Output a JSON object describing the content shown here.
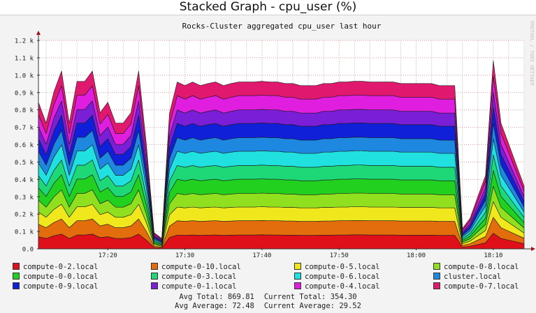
{
  "page": {
    "title": "Stacked Graph - cpu_user (%)"
  },
  "watermark": "RRDTOOL / TOBI OETIKER",
  "chart_data": {
    "type": "area",
    "title": "Rocks-Cluster aggregated cpu_user last hour",
    "xlabel": "",
    "ylabel": "",
    "ylim": [
      0,
      1200
    ],
    "yticks": [
      0,
      100,
      200,
      300,
      400,
      500,
      600,
      700,
      800,
      900,
      1000,
      1100,
      1200
    ],
    "ytick_labels": [
      "0.0",
      "0.1 k",
      "0.2 k",
      "0.3 k",
      "0.4 k",
      "0.5 k",
      "0.6 k",
      "0.7 k",
      "0.8 k",
      "0.9 k",
      "1.0 k",
      "1.1 k",
      "1.2 k"
    ],
    "xlim": [
      "17:11",
      "18:14"
    ],
    "xticks": [
      "17:20",
      "17:30",
      "17:40",
      "17:50",
      "18:00",
      "18:10"
    ],
    "grid": true,
    "legend_position": "bottom",
    "stacked": true,
    "x": [
      "17:11",
      "17:12",
      "17:13",
      "17:14",
      "17:15",
      "17:16",
      "17:17",
      "17:18",
      "17:19",
      "17:20",
      "17:21",
      "17:22",
      "17:23",
      "17:24",
      "17:25",
      "17:26",
      "17:27",
      "17:28",
      "17:29",
      "17:30",
      "17:31",
      "17:32",
      "17:33",
      "17:34",
      "17:35",
      "17:36",
      "17:37",
      "17:38",
      "17:39",
      "17:40",
      "17:41",
      "17:42",
      "17:43",
      "17:44",
      "17:45",
      "17:46",
      "17:47",
      "17:48",
      "17:49",
      "17:50",
      "17:51",
      "17:52",
      "17:53",
      "17:54",
      "17:55",
      "17:56",
      "17:57",
      "17:58",
      "17:59",
      "18:00",
      "18:01",
      "18:02",
      "18:03",
      "18:04",
      "18:05",
      "18:06",
      "18:07",
      "18:08",
      "18:09",
      "18:10",
      "18:11",
      "18:12",
      "18:13",
      "18:14"
    ],
    "series": [
      {
        "name": "compute-0-2.local",
        "color": "#e0101a",
        "values": [
          70,
          60,
          75,
          85,
          60,
          80,
          80,
          85,
          65,
          70,
          60,
          60,
          65,
          85,
          50,
          8,
          5,
          65,
          80,
          78,
          80,
          78,
          79,
          80,
          78,
          79,
          80,
          80,
          80,
          81,
          80,
          80,
          79,
          79,
          78,
          78,
          78,
          79,
          79,
          80,
          80,
          81,
          81,
          80,
          80,
          80,
          80,
          79,
          79,
          79,
          79,
          79,
          78,
          78,
          78,
          10,
          15,
          25,
          35,
          90,
          60,
          50,
          40,
          30
        ]
      },
      {
        "name": "compute-0-10.local",
        "color": "#e36c0c",
        "values": [
          72,
          62,
          77,
          87,
          62,
          82,
          82,
          87,
          67,
          72,
          62,
          62,
          67,
          87,
          52,
          8,
          5,
          66,
          82,
          80,
          82,
          80,
          81,
          82,
          80,
          81,
          82,
          82,
          82,
          82,
          82,
          82,
          81,
          81,
          80,
          80,
          80,
          81,
          81,
          82,
          82,
          82,
          82,
          82,
          82,
          82,
          82,
          81,
          81,
          81,
          81,
          81,
          80,
          80,
          80,
          10,
          15,
          26,
          36,
          92,
          62,
          52,
          41,
          31
        ]
      },
      {
        "name": "compute-0-5.local",
        "color": "#f0e81c",
        "values": [
          70,
          60,
          75,
          85,
          60,
          80,
          80,
          85,
          65,
          70,
          60,
          60,
          65,
          85,
          50,
          8,
          5,
          65,
          79,
          78,
          79,
          78,
          79,
          79,
          78,
          79,
          79,
          79,
          79,
          80,
          79,
          79,
          79,
          79,
          78,
          78,
          78,
          79,
          79,
          79,
          79,
          80,
          80,
          79,
          79,
          79,
          79,
          79,
          79,
          79,
          79,
          79,
          78,
          78,
          78,
          10,
          15,
          25,
          35,
          90,
          60,
          50,
          40,
          30
        ]
      },
      {
        "name": "compute-0-8.local",
        "color": "#90e020",
        "values": [
          68,
          58,
          73,
          83,
          58,
          78,
          78,
          83,
          63,
          68,
          58,
          58,
          63,
          83,
          48,
          7,
          5,
          63,
          78,
          76,
          78,
          76,
          77,
          78,
          76,
          77,
          78,
          78,
          78,
          78,
          78,
          78,
          77,
          77,
          76,
          76,
          76,
          77,
          77,
          78,
          78,
          78,
          78,
          78,
          78,
          78,
          78,
          77,
          77,
          77,
          77,
          77,
          76,
          76,
          76,
          9,
          14,
          24,
          34,
          88,
          58,
          48,
          39,
          29
        ]
      },
      {
        "name": "compute-0-0.local",
        "color": "#22d020",
        "values": [
          72,
          62,
          77,
          87,
          62,
          82,
          82,
          87,
          67,
          72,
          62,
          62,
          67,
          87,
          52,
          8,
          5,
          66,
          82,
          80,
          82,
          80,
          81,
          82,
          80,
          81,
          82,
          82,
          82,
          82,
          82,
          82,
          81,
          81,
          80,
          80,
          80,
          81,
          81,
          82,
          82,
          82,
          82,
          82,
          82,
          82,
          82,
          81,
          81,
          81,
          81,
          81,
          80,
          80,
          80,
          10,
          15,
          26,
          36,
          92,
          62,
          52,
          41,
          31
        ]
      },
      {
        "name": "compute-0-3.local",
        "color": "#1ed878",
        "values": [
          70,
          60,
          75,
          85,
          60,
          80,
          80,
          85,
          65,
          70,
          60,
          60,
          65,
          85,
          50,
          8,
          5,
          65,
          79,
          78,
          79,
          78,
          79,
          79,
          78,
          79,
          79,
          79,
          79,
          80,
          79,
          79,
          79,
          79,
          78,
          78,
          78,
          79,
          79,
          79,
          79,
          80,
          80,
          79,
          79,
          79,
          79,
          79,
          79,
          79,
          79,
          79,
          78,
          78,
          78,
          10,
          15,
          25,
          35,
          90,
          60,
          50,
          40,
          30
        ]
      },
      {
        "name": "compute-0-6.local",
        "color": "#20e0e0",
        "values": [
          72,
          62,
          77,
          87,
          62,
          82,
          82,
          87,
          67,
          72,
          62,
          62,
          67,
          87,
          52,
          8,
          5,
          66,
          82,
          80,
          82,
          80,
          81,
          82,
          80,
          81,
          82,
          82,
          82,
          82,
          82,
          82,
          81,
          81,
          80,
          80,
          80,
          81,
          81,
          82,
          82,
          82,
          82,
          82,
          82,
          82,
          82,
          81,
          81,
          81,
          81,
          81,
          80,
          80,
          80,
          10,
          15,
          26,
          36,
          92,
          62,
          52,
          41,
          31
        ]
      },
      {
        "name": "cluster.local",
        "color": "#1e88e0",
        "values": [
          68,
          58,
          73,
          83,
          58,
          78,
          78,
          83,
          63,
          68,
          58,
          58,
          63,
          83,
          48,
          7,
          5,
          63,
          78,
          76,
          78,
          76,
          77,
          78,
          76,
          77,
          78,
          78,
          78,
          78,
          78,
          78,
          77,
          77,
          76,
          76,
          76,
          77,
          77,
          78,
          78,
          78,
          78,
          78,
          78,
          78,
          78,
          77,
          77,
          77,
          77,
          77,
          76,
          76,
          76,
          9,
          14,
          24,
          34,
          88,
          58,
          48,
          39,
          29
        ]
      },
      {
        "name": "compute-0-9.local",
        "color": "#1020d8",
        "values": [
          72,
          62,
          77,
          87,
          62,
          82,
          82,
          87,
          67,
          72,
          62,
          62,
          67,
          87,
          52,
          8,
          5,
          66,
          82,
          80,
          82,
          80,
          81,
          82,
          80,
          81,
          82,
          82,
          82,
          82,
          82,
          82,
          81,
          81,
          80,
          80,
          80,
          81,
          81,
          82,
          82,
          82,
          82,
          82,
          82,
          82,
          82,
          81,
          81,
          81,
          81,
          81,
          80,
          80,
          80,
          10,
          15,
          26,
          36,
          92,
          62,
          52,
          41,
          31
        ]
      },
      {
        "name": "compute-0-1.local",
        "color": "#7a1ed8",
        "values": [
          68,
          58,
          73,
          83,
          58,
          78,
          78,
          83,
          63,
          68,
          58,
          58,
          63,
          83,
          48,
          7,
          5,
          63,
          78,
          76,
          78,
          76,
          77,
          78,
          76,
          77,
          78,
          78,
          78,
          78,
          78,
          78,
          77,
          77,
          76,
          76,
          76,
          77,
          77,
          78,
          78,
          78,
          78,
          78,
          78,
          78,
          78,
          77,
          77,
          77,
          77,
          77,
          76,
          76,
          76,
          9,
          14,
          24,
          34,
          88,
          58,
          48,
          39,
          29
        ]
      },
      {
        "name": "compute-0-4.local",
        "color": "#e01ee0",
        "values": [
          72,
          62,
          77,
          87,
          62,
          82,
          82,
          87,
          67,
          72,
          62,
          62,
          67,
          87,
          52,
          8,
          5,
          66,
          82,
          80,
          82,
          80,
          81,
          82,
          80,
          81,
          82,
          82,
          82,
          82,
          82,
          82,
          81,
          81,
          80,
          80,
          80,
          81,
          81,
          82,
          82,
          82,
          82,
          82,
          82,
          82,
          82,
          81,
          81,
          81,
          81,
          81,
          80,
          80,
          80,
          10,
          15,
          26,
          36,
          92,
          62,
          52,
          41,
          31
        ]
      },
      {
        "name": "compute-0-7.local",
        "color": "#e0186e",
        "values": [
          70,
          60,
          75,
          85,
          60,
          80,
          80,
          85,
          65,
          70,
          60,
          60,
          65,
          85,
          50,
          8,
          5,
          65,
          79,
          78,
          79,
          78,
          79,
          79,
          78,
          79,
          79,
          79,
          79,
          80,
          79,
          79,
          79,
          79,
          78,
          78,
          78,
          79,
          79,
          79,
          79,
          80,
          80,
          79,
          79,
          79,
          79,
          79,
          79,
          79,
          79,
          79,
          78,
          78,
          78,
          10,
          15,
          25,
          35,
          90,
          60,
          50,
          40,
          30
        ]
      }
    ],
    "stats": {
      "avg_total_label": "Avg Total:",
      "avg_total": "869.81",
      "current_total_label": "Current Total:",
      "current_total": "354.30",
      "avg_average_label": "Avg Average:",
      "avg_average": "72.48",
      "current_average_label": "Current Average:",
      "current_average": "29.52"
    }
  }
}
